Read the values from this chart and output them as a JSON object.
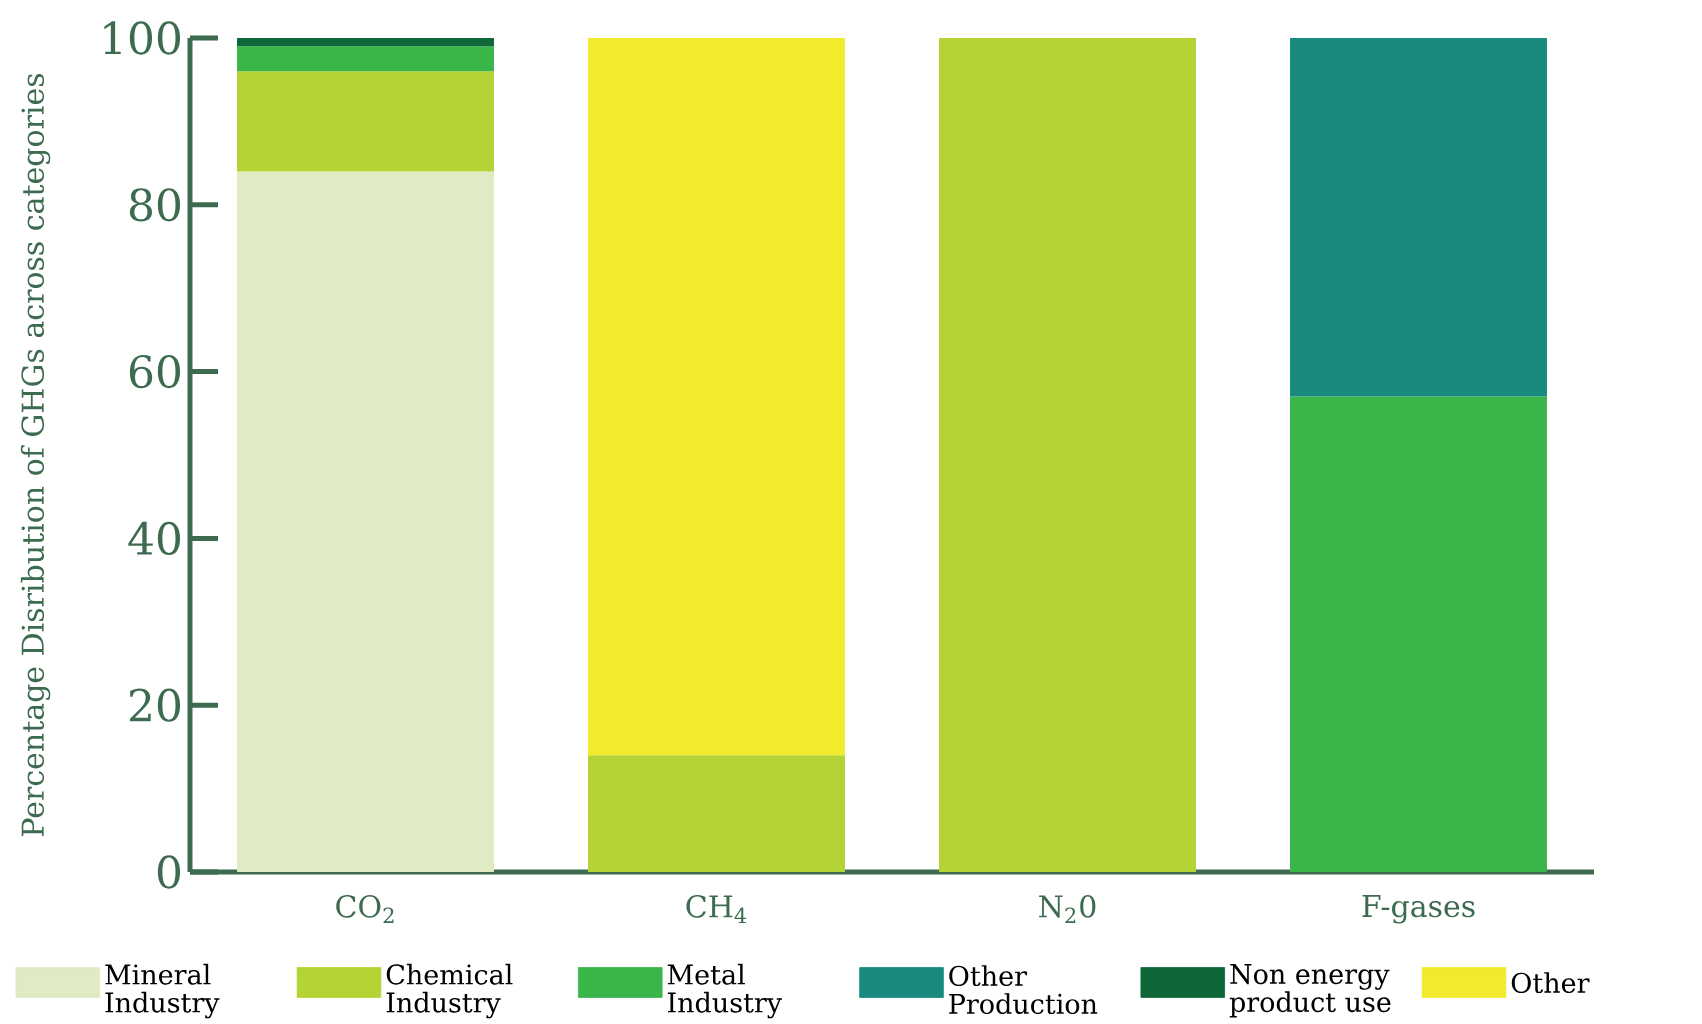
{
  "chart_data": {
    "type": "bar",
    "stacked": true,
    "ylabel": "Percentage Disribution of GHGs across categories",
    "categories": [
      "CO$_{2}$",
      "CH$_{4}$",
      "N$_{2}$0",
      "F-gases"
    ],
    "ylim": [
      0,
      100
    ],
    "yticks": [
      0,
      20,
      40,
      60,
      80,
      100
    ],
    "grid": false,
    "legend": "bottom",
    "series": [
      {
        "name": "Mineral Industry",
        "color": "#e0ebc3",
        "values": [
          84,
          null,
          null,
          null
        ]
      },
      {
        "name": "Chemical Industry",
        "color": "#b4d334",
        "values": [
          12,
          14,
          100,
          null
        ]
      },
      {
        "name": "Metal Industry",
        "color": "#3ab54a",
        "values": [
          3,
          null,
          null,
          57
        ]
      },
      {
        "name": "Other Production",
        "color": "#188a7e",
        "values": [
          null,
          null,
          null,
          43
        ]
      },
      {
        "name": "Non energy product use",
        "color": "#0f6638",
        "values": [
          1,
          null,
          null,
          null
        ]
      },
      {
        "name": "Other",
        "color": "#f2ea2d",
        "values": [
          null,
          86,
          null,
          null
        ]
      }
    ]
  }
}
